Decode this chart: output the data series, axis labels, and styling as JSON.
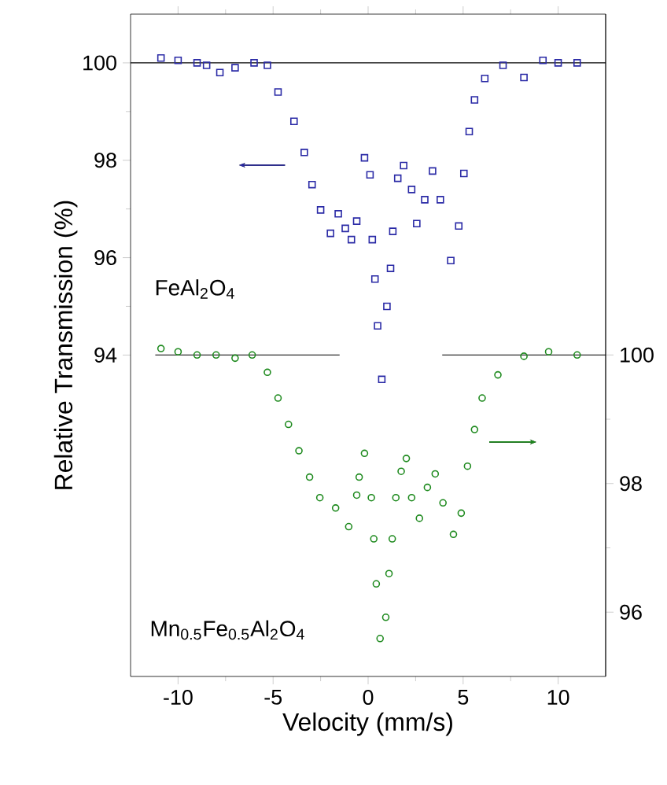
{
  "chart_data": {
    "type": "scatter",
    "xlabel": "Velocity  (mm/s)",
    "ylabel": "Relative Transmission  (%)",
    "annotations": [
      "FeAl$_{2}$O$_{4}$",
      "Mn$_{0.5}$Fe$_{0.5}$Al$_{2}$O$_{4}$"
    ],
    "xlim": [
      -12.5,
      12.5
    ],
    "xticks": [
      -10,
      -5,
      0,
      5,
      10
    ],
    "ylim": [
      87.4,
      101
    ],
    "yticks": [
      94,
      96,
      98,
      100
    ],
    "y2lim": [
      95,
      105.3
    ],
    "y2ticks": [
      96,
      98,
      100
    ],
    "grid": false,
    "series": [
      {
        "type": "line",
        "color": "#000000",
        "axis": "y",
        "x": [
          -12.5,
          12.5
        ],
        "values": [
          100,
          100
        ]
      },
      {
        "type": "line",
        "color": "#000000",
        "axis": "y2",
        "x": [
          -11.2,
          -1.5,
          1,
          3.9,
          12.5
        ],
        "values": [
          100,
          100,
          null,
          100,
          100
        ]
      },
      {
        "color": "#2a2aa6",
        "marker": "square",
        "axis": "y",
        "x": [
          -10.9,
          -10,
          -9,
          -8.5,
          -7.8,
          -7,
          -6,
          -5.3,
          -4.74,
          -3.9,
          -3.36,
          -2.95,
          -2.5,
          -1.98,
          -1.57,
          -1.2,
          -0.88,
          -0.6,
          -0.19,
          0.1,
          0.22,
          0.36,
          0.5,
          0.72,
          0.99,
          1.18,
          1.3,
          1.56,
          1.87,
          2.29,
          2.56,
          2.98,
          3.39,
          3.8,
          4.35,
          4.77,
          5.04,
          5.32,
          5.6,
          6.14,
          7.1,
          8.2,
          9.2,
          10,
          11
        ],
        "values": [
          100.1,
          100.05,
          100.0,
          99.95,
          99.8,
          99.9,
          100.0,
          99.95,
          99.4,
          98.8,
          98.16,
          97.5,
          96.98,
          96.5,
          96.9,
          96.6,
          96.37,
          96.75,
          98.05,
          97.7,
          96.37,
          95.56,
          94.6,
          93.5,
          95.0,
          95.78,
          96.54,
          97.63,
          97.89,
          97.4,
          96.7,
          97.19,
          97.78,
          97.19,
          95.94,
          96.65,
          97.73,
          98.59,
          99.24,
          99.68,
          99.95,
          99.7,
          100.05,
          100.0,
          100.0
        ]
      },
      {
        "color": "#1e8a1e",
        "marker": "circle",
        "axis": "y2",
        "x": [
          -10.9,
          -10,
          -9,
          -8,
          -7,
          -6.1,
          -5.3,
          -4.74,
          -4.19,
          -3.64,
          -3.08,
          -2.54,
          -1.71,
          -1.02,
          -0.6,
          -0.47,
          -0.19,
          0.17,
          0.3,
          0.43,
          0.63,
          0.93,
          1.1,
          1.27,
          1.46,
          1.74,
          2.01,
          2.29,
          2.7,
          3.12,
          3.53,
          3.94,
          4.49,
          4.9,
          5.23,
          5.6,
          6.0,
          6.83,
          8.2,
          9.5,
          11
        ],
        "values": [
          100.1,
          100.05,
          100.0,
          100.0,
          99.95,
          100.0,
          99.73,
          99.33,
          98.92,
          98.51,
          98.1,
          97.78,
          97.62,
          97.33,
          97.82,
          98.1,
          98.47,
          97.78,
          97.14,
          96.44,
          95.59,
          95.92,
          96.6,
          97.14,
          97.78,
          98.19,
          98.39,
          97.78,
          97.46,
          97.94,
          98.15,
          97.7,
          97.21,
          97.54,
          98.27,
          98.84,
          99.33,
          99.69,
          99.98,
          100.05,
          100.0
        ]
      }
    ]
  }
}
